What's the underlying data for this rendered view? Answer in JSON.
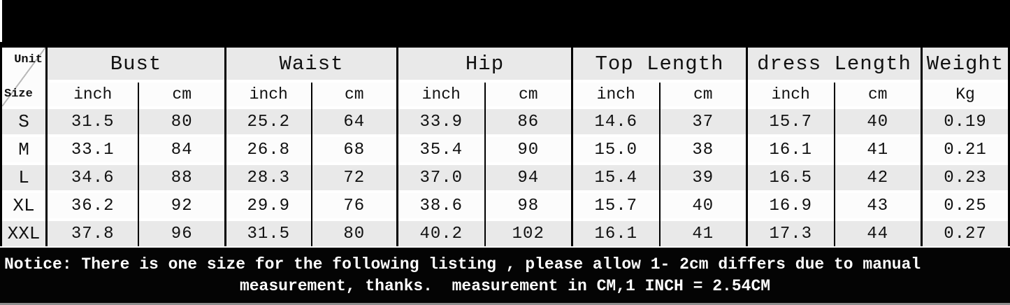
{
  "colors": {
    "banner": "#000000",
    "row_gray": "#e9e9e9",
    "row_white": "#fcfcfc",
    "border": "#000000",
    "notice_bg": "#040404",
    "notice_text": "#ffffff",
    "bottom_strip": "#8f8f8f",
    "diagonal_line": "#b8b8b8"
  },
  "table": {
    "corner": {
      "unit_label": "Unit",
      "size_label": "Size"
    },
    "groups": [
      {
        "label": "Bust",
        "subcolumns": [
          "inch",
          "cm"
        ]
      },
      {
        "label": "Waist",
        "subcolumns": [
          "inch",
          "cm"
        ]
      },
      {
        "label": "Hip",
        "subcolumns": [
          "inch",
          "cm"
        ]
      },
      {
        "label": "Top Length",
        "subcolumns": [
          "inch",
          "cm"
        ]
      },
      {
        "label": "dress Length",
        "subcolumns": [
          "inch",
          "cm"
        ]
      },
      {
        "label": "Weight",
        "subcolumns": [
          "Kg"
        ]
      }
    ],
    "rows": [
      {
        "size": "S",
        "values": [
          "31.5",
          "80",
          "25.2",
          "64",
          "33.9",
          "86",
          "14.6",
          "37",
          "15.7",
          "40",
          "0.19"
        ]
      },
      {
        "size": "M",
        "values": [
          "33.1",
          "84",
          "26.8",
          "68",
          "35.4",
          "90",
          "15.0",
          "38",
          "16.1",
          "41",
          "0.21"
        ]
      },
      {
        "size": "L",
        "values": [
          "34.6",
          "88",
          "28.3",
          "72",
          "37.0",
          "94",
          "15.4",
          "39",
          "16.5",
          "42",
          "0.23"
        ]
      },
      {
        "size": "XL",
        "values": [
          "36.2",
          "92",
          "29.9",
          "76",
          "38.6",
          "98",
          "15.7",
          "40",
          "16.9",
          "43",
          "0.25"
        ]
      },
      {
        "size": "XXL",
        "values": [
          "37.8",
          "96",
          "31.5",
          "80",
          "40.2",
          "102",
          "16.1",
          "41",
          "17.3",
          "44",
          "0.27"
        ]
      }
    ]
  },
  "notice": {
    "line1": "Notice: There is one size for the following listing , please allow 1- 2cm differs due to manual",
    "line2": "measurement, thanks.  measurement in CM,1 INCH = 2.54CM"
  }
}
